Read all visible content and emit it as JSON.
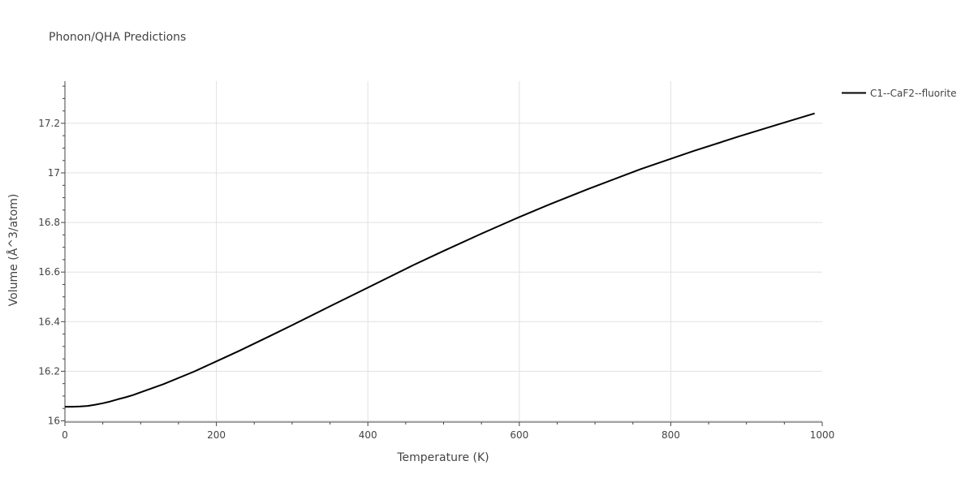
{
  "chart_data": {
    "type": "line",
    "title": "Phonon/QHA Predictions",
    "xlabel": "Temperature (K)",
    "ylabel": "Volume (Å^3/atom)",
    "xlim": [
      0,
      1000
    ],
    "ylim": [
      15.995,
      17.37
    ],
    "x_ticks": [
      0,
      200,
      400,
      600,
      800,
      1000
    ],
    "x_tick_labels": [
      "0",
      "200",
      "400",
      "600",
      "800",
      "1000"
    ],
    "y_ticks": [
      16,
      16.2,
      16.4,
      16.6,
      16.8,
      17,
      17.2
    ],
    "y_tick_labels": [
      "16",
      "16.2",
      "16.4",
      "16.6",
      "16.8",
      "17",
      "17.2"
    ],
    "grid": true,
    "legend_position": "top-right-outside",
    "series": [
      {
        "name": "C1--CaF2--fluorite",
        "color": "#000000",
        "x": [
          0,
          10,
          20,
          30,
          40,
          50,
          60,
          70,
          80,
          90,
          100,
          130,
          170,
          200,
          230,
          270,
          300,
          350,
          400,
          460,
          500,
          550,
          600,
          640,
          690,
          760,
          830,
          890,
          940,
          990
        ],
        "y": [
          16.057,
          16.057,
          16.058,
          16.06,
          16.065,
          16.071,
          16.078,
          16.087,
          16.095,
          16.104,
          16.115,
          16.148,
          16.198,
          16.24,
          16.282,
          16.341,
          16.386,
          16.462,
          16.537,
          16.628,
          16.685,
          16.755,
          16.822,
          16.873,
          16.934,
          17.015,
          17.088,
          17.147,
          17.194,
          17.24
        ]
      }
    ]
  },
  "colors": {
    "grid": "#e1e1e1",
    "axis": "#444444",
    "text": "#444444"
  }
}
